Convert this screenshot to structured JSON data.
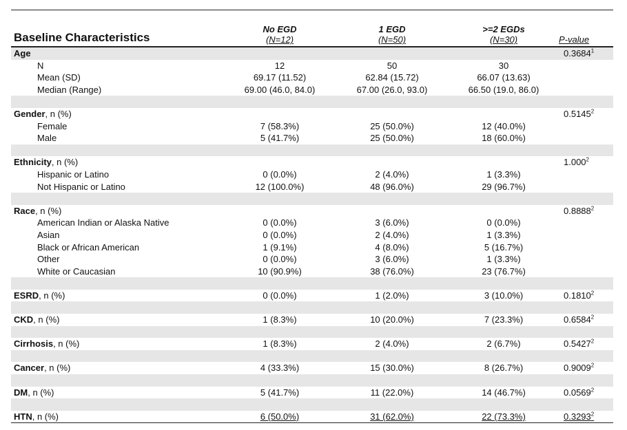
{
  "header": {
    "title": "Baseline Characteristics",
    "col1": {
      "name": "No EGD",
      "n": "(N=12)"
    },
    "col2": {
      "name": "1 EGD",
      "n": "(N=50)"
    },
    "col3": {
      "name": ">=2 EGDs",
      "n": "(N=30)"
    },
    "pval": "P-value"
  },
  "rows": [
    {
      "type": "section",
      "shade": true,
      "bold": "Age",
      "rest": "",
      "v1": "",
      "v2": "",
      "v3": "",
      "p": "0.3684",
      "sup": "1"
    },
    {
      "type": "item",
      "label": "N",
      "v1": "12",
      "v2": "50",
      "v3": "30",
      "p": "",
      "sup": ""
    },
    {
      "type": "item",
      "label": "Mean (SD)",
      "v1": "69.17 (11.52)",
      "v2": "62.84 (15.72)",
      "v3": "66.07 (13.63)",
      "p": "",
      "sup": ""
    },
    {
      "type": "item",
      "label": "Median (Range)",
      "v1": "69.00 (46.0, 84.0)",
      "v2": "67.00 (26.0, 93.0)",
      "v3": "66.50 (19.0, 86.0)",
      "p": "",
      "sup": ""
    },
    {
      "type": "spacer",
      "shade": true
    },
    {
      "type": "section",
      "shade": false,
      "bold": "Gender",
      "rest": ", n (%)",
      "v1": "",
      "v2": "",
      "v3": "",
      "p": "0.5145",
      "sup": "2"
    },
    {
      "type": "item",
      "label": "Female",
      "v1": "7 (58.3%)",
      "v2": "25 (50.0%)",
      "v3": "12 (40.0%)",
      "p": "",
      "sup": ""
    },
    {
      "type": "item",
      "label": "Male",
      "v1": "5 (41.7%)",
      "v2": "25 (50.0%)",
      "v3": "18 (60.0%)",
      "p": "",
      "sup": ""
    },
    {
      "type": "spacer",
      "shade": true
    },
    {
      "type": "section",
      "shade": false,
      "bold": "Ethnicity",
      "rest": ", n (%)",
      "v1": "",
      "v2": "",
      "v3": "",
      "p": "1.000",
      "sup": "2"
    },
    {
      "type": "item",
      "label": "Hispanic or Latino",
      "v1": "0 (0.0%)",
      "v2": "2 (4.0%)",
      "v3": "1 (3.3%)",
      "p": "",
      "sup": ""
    },
    {
      "type": "item",
      "label": "Not Hispanic or Latino",
      "v1": "12 (100.0%)",
      "v2": "48 (96.0%)",
      "v3": "29 (96.7%)",
      "p": "",
      "sup": ""
    },
    {
      "type": "spacer",
      "shade": true
    },
    {
      "type": "section",
      "shade": false,
      "bold": "Race",
      "rest": ", n (%)",
      "v1": "",
      "v2": "",
      "v3": "",
      "p": "0.8888",
      "sup": "2"
    },
    {
      "type": "item",
      "label": "American Indian or Alaska Native",
      "v1": "0 (0.0%)",
      "v2": "3 (6.0%)",
      "v3": "0 (0.0%)",
      "p": "",
      "sup": ""
    },
    {
      "type": "item",
      "label": "Asian",
      "v1": "0 (0.0%)",
      "v2": "2 (4.0%)",
      "v3": "1 (3.3%)",
      "p": "",
      "sup": ""
    },
    {
      "type": "item",
      "label": "Black or African American",
      "v1": "1 (9.1%)",
      "v2": "4 (8.0%)",
      "v3": "5 (16.7%)",
      "p": "",
      "sup": ""
    },
    {
      "type": "item",
      "label": "Other",
      "v1": "0 (0.0%)",
      "v2": "3 (6.0%)",
      "v3": "1 (3.3%)",
      "p": "",
      "sup": ""
    },
    {
      "type": "item",
      "label": "White or Caucasian",
      "v1": "10 (90.9%)",
      "v2": "38 (76.0%)",
      "v3": "23 (76.7%)",
      "p": "",
      "sup": ""
    },
    {
      "type": "spacer",
      "shade": true
    },
    {
      "type": "section",
      "shade": false,
      "bold": "ESRD",
      "rest": ", n (%)",
      "v1": "0 (0.0%)",
      "v2": "1 (2.0%)",
      "v3": "3 (10.0%)",
      "p": "0.1810",
      "sup": "2"
    },
    {
      "type": "spacer",
      "shade": true
    },
    {
      "type": "section",
      "shade": false,
      "bold": "CKD",
      "rest": ", n (%)",
      "v1": "1 (8.3%)",
      "v2": "10 (20.0%)",
      "v3": "7 (23.3%)",
      "p": "0.6584",
      "sup": "2"
    },
    {
      "type": "spacer",
      "shade": true
    },
    {
      "type": "section",
      "shade": false,
      "bold": "Cirrhosis",
      "rest": ", n (%)",
      "v1": "1 (8.3%)",
      "v2": "2 (4.0%)",
      "v3": "2 (6.7%)",
      "p": "0.5427",
      "sup": "2"
    },
    {
      "type": "spacer",
      "shade": true
    },
    {
      "type": "section",
      "shade": false,
      "bold": "Cancer",
      "rest": ", n (%)",
      "v1": "4 (33.3%)",
      "v2": "15 (30.0%)",
      "v3": "8 (26.7%)",
      "p": "0.9009",
      "sup": "2"
    },
    {
      "type": "spacer",
      "shade": true
    },
    {
      "type": "section",
      "shade": false,
      "bold": "DM",
      "rest": ", n (%)",
      "v1": "5 (41.7%)",
      "v2": "11 (22.0%)",
      "v3": "14 (46.7%)",
      "p": "0.0569",
      "sup": "2"
    },
    {
      "type": "spacer",
      "shade": true
    },
    {
      "type": "section",
      "shade": false,
      "bold": "HTN",
      "rest": ", n (%)",
      "v1": "6 (50.0%)",
      "v2": "31 (62.0%)",
      "v3": "22 (73.3%)",
      "p": "0.3293",
      "sup": "2",
      "last": true
    }
  ]
}
